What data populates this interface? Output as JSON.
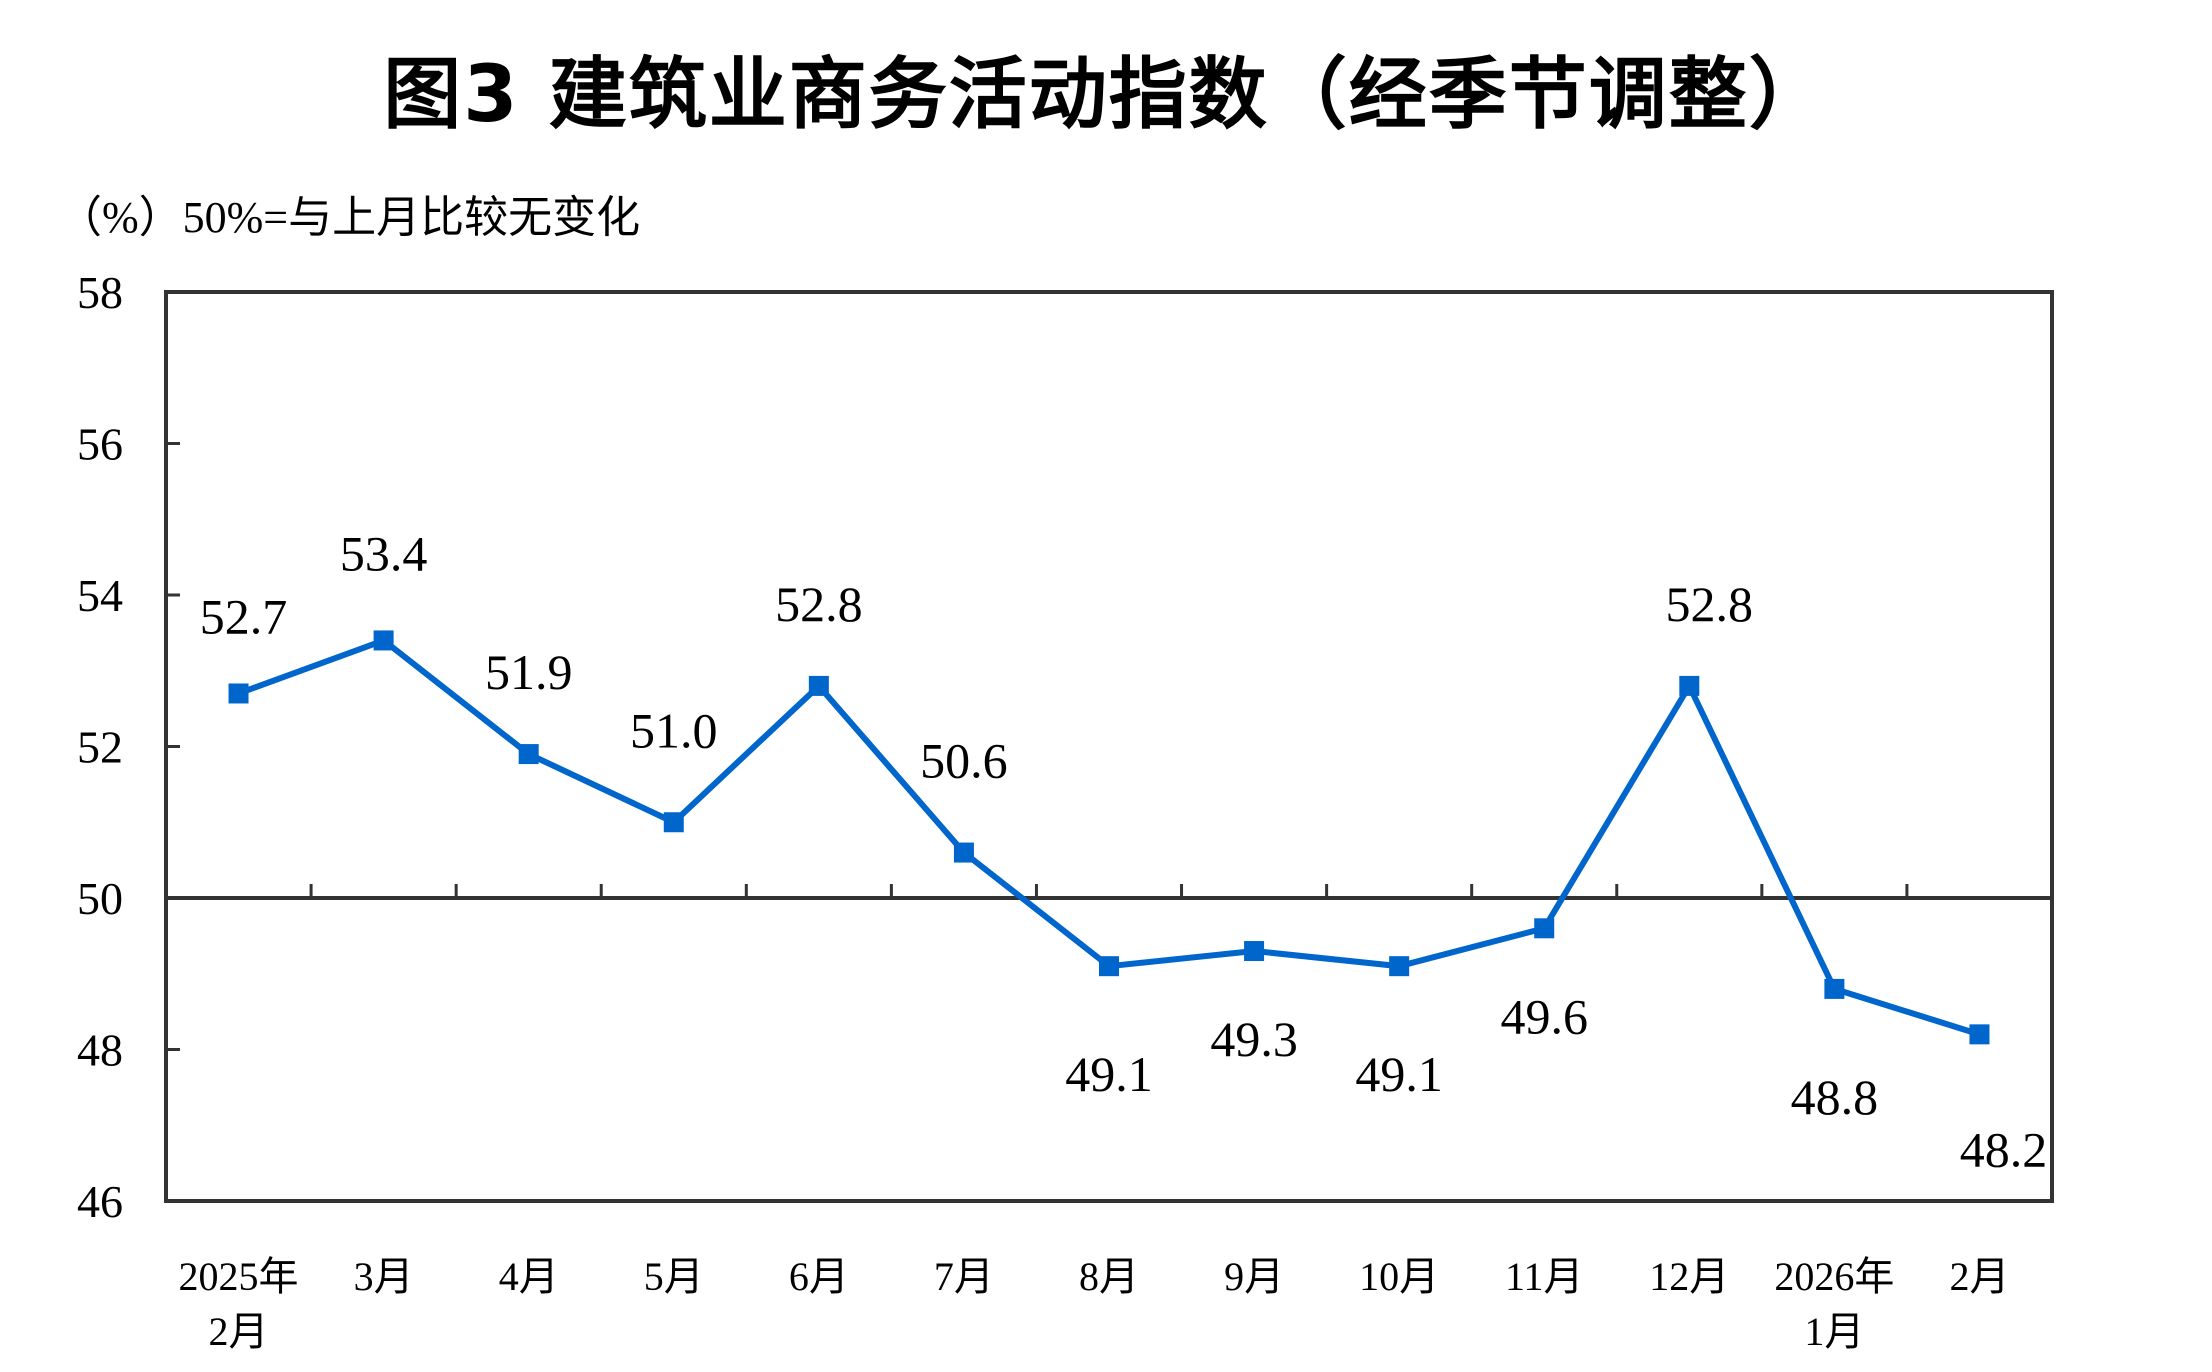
{
  "title": "图3  建筑业商务活动指数（经季节调整）",
  "subtitle": "（%）50%=与上月比较无变化",
  "colors": {
    "series": "#0066CC",
    "axis": "#333333",
    "text": "#000000"
  },
  "chart_data": {
    "type": "line",
    "title": "图3  建筑业商务活动指数（经季节调整）",
    "subtitle": "（%）50%=与上月比较无变化",
    "xlabel": "",
    "ylabel": "%",
    "ylim": [
      46,
      58
    ],
    "yticks": [
      46,
      48,
      50,
      52,
      54,
      56,
      58
    ],
    "reference_line": 50,
    "grid": false,
    "legend": null,
    "categories": [
      [
        "2025年",
        "2月"
      ],
      [
        "3月"
      ],
      [
        "4月"
      ],
      [
        "5月"
      ],
      [
        "6月"
      ],
      [
        "7月"
      ],
      [
        "8月"
      ],
      [
        "9月"
      ],
      [
        "10月"
      ],
      [
        "11月"
      ],
      [
        "12月"
      ],
      [
        "2026年",
        "1月"
      ],
      [
        "2月"
      ]
    ],
    "series": [
      {
        "name": "建筑业商务活动指数",
        "values": [
          52.7,
          53.4,
          51.9,
          51.0,
          52.8,
          50.6,
          49.1,
          49.3,
          49.1,
          49.6,
          52.8,
          48.8,
          48.2
        ],
        "labels": [
          "52.7",
          "53.4",
          "51.9",
          "51.0",
          "52.8",
          "50.6",
          "49.1",
          "49.3",
          "49.1",
          "49.6",
          "52.8",
          "48.8",
          "48.2"
        ],
        "marker": "square",
        "color": "#0066CC"
      }
    ]
  }
}
